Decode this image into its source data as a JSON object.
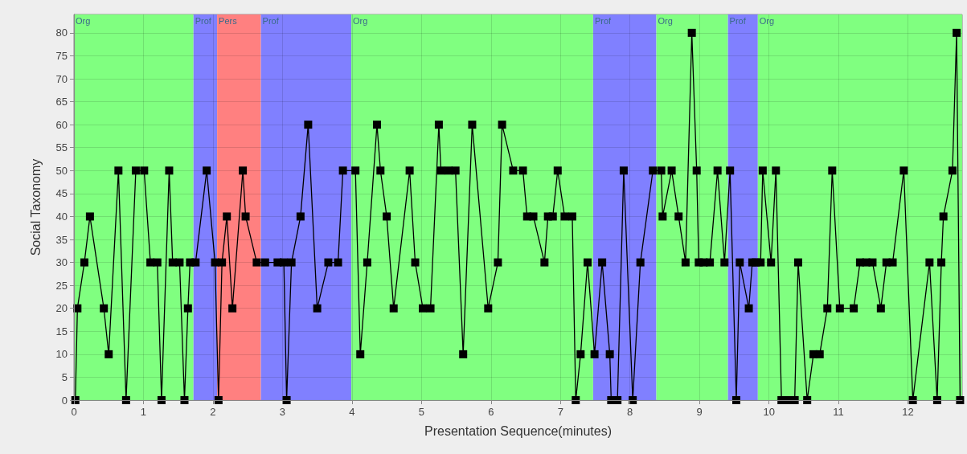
{
  "chart_data": {
    "type": "line",
    "xlabel": "Presentation Sequence(minutes)",
    "ylabel": "Social Taxonomy",
    "series": [
      {
        "color": "#000000",
        "x": [
          0.02,
          0.05,
          0.15,
          0.23,
          0.43,
          0.5,
          0.64,
          0.75,
          0.89,
          1.01,
          1.1,
          1.2,
          1.26,
          1.37,
          1.42,
          1.52,
          1.59,
          1.64,
          1.67,
          1.75,
          1.91,
          2.03,
          2.08,
          2.13,
          2.2,
          2.28,
          2.43,
          2.47,
          2.63,
          2.75,
          2.93,
          3.02,
          3.06,
          3.13,
          3.26,
          3.37,
          3.5,
          3.66,
          3.8,
          3.87,
          4.05,
          4.12,
          4.22,
          4.36,
          4.41,
          4.5,
          4.6,
          4.83,
          4.91,
          5.02,
          5.13,
          5.25,
          5.28,
          5.39,
          5.49,
          5.6,
          5.73,
          5.96,
          6.1,
          6.16,
          6.32,
          6.46,
          6.52,
          6.61,
          6.77,
          6.82,
          6.89,
          6.96,
          7.06,
          7.17,
          7.22,
          7.29,
          7.39,
          7.49,
          7.6,
          7.71,
          7.73,
          7.82,
          7.91,
          8.04,
          8.15,
          8.33,
          8.45,
          8.47,
          8.6,
          8.7,
          8.8,
          8.89,
          8.96,
          8.99,
          9.06,
          9.15,
          9.26,
          9.36,
          9.44,
          9.53,
          9.58,
          9.71,
          9.76,
          9.81,
          9.88,
          9.91,
          10.03,
          10.1,
          10.18,
          10.28,
          10.37,
          10.42,
          10.55,
          10.64,
          10.73,
          10.84,
          10.91,
          11.02,
          11.22,
          11.31,
          11.4,
          11.49,
          11.61,
          11.69,
          11.78,
          11.94,
          12.07,
          12.31,
          12.42,
          12.48,
          12.51,
          12.64,
          12.7,
          12.75
        ],
        "values": [
          0,
          20,
          30,
          40,
          20,
          10,
          50,
          0,
          50,
          50,
          30,
          30,
          0,
          50,
          30,
          30,
          0,
          20,
          30,
          30,
          50,
          30,
          0,
          30,
          40,
          20,
          50,
          40,
          30,
          30,
          30,
          30,
          0,
          30,
          40,
          60,
          20,
          30,
          30,
          50,
          50,
          10,
          30,
          60,
          50,
          40,
          20,
          50,
          30,
          20,
          20,
          60,
          50,
          50,
          50,
          10,
          60,
          20,
          30,
          60,
          50,
          50,
          40,
          40,
          30,
          40,
          40,
          50,
          40,
          40,
          0,
          10,
          30,
          10,
          30,
          10,
          0,
          0,
          50,
          0,
          30,
          50,
          50,
          40,
          50,
          40,
          30,
          80,
          50,
          30,
          30,
          30,
          50,
          30,
          50,
          0,
          30,
          20,
          30,
          30,
          30,
          50,
          30,
          50,
          0,
          0,
          0,
          30,
          0,
          10,
          10,
          20,
          50,
          20,
          20,
          30,
          30,
          30,
          20,
          30,
          30,
          50,
          0,
          30,
          0,
          30,
          40,
          50,
          80,
          0
        ]
      }
    ],
    "xlim": [
      0,
      12.78
    ],
    "ylim": [
      0,
      84
    ],
    "xticks": [
      0,
      1,
      2,
      3,
      4,
      5,
      6,
      7,
      8,
      9,
      10,
      11,
      12
    ],
    "yticks": [
      0,
      5,
      10,
      15,
      20,
      25,
      30,
      35,
      40,
      45,
      50,
      55,
      60,
      65,
      70,
      75,
      80
    ],
    "bands": [
      {
        "axis": "x",
        "from": 0,
        "to": 1.72,
        "label": "Org",
        "color": "#80ff80"
      },
      {
        "axis": "x",
        "from": 1.72,
        "to": 2.06,
        "label": "Prof",
        "color": "#8080ff"
      },
      {
        "axis": "x",
        "from": 2.06,
        "to": 2.69,
        "label": "Pers",
        "color": "#ff8080"
      },
      {
        "axis": "x",
        "from": 2.69,
        "to": 3.99,
        "label": "Prof",
        "color": "#8080ff"
      },
      {
        "axis": "x",
        "from": 3.99,
        "to": 7.47,
        "label": "Org",
        "color": "#80ff80"
      },
      {
        "axis": "x",
        "from": 7.47,
        "to": 8.38,
        "label": "Prof",
        "color": "#8080ff"
      },
      {
        "axis": "x",
        "from": 8.38,
        "to": 9.41,
        "label": "Org",
        "color": "#80ff80"
      },
      {
        "axis": "x",
        "from": 9.41,
        "to": 9.84,
        "label": "Prof",
        "color": "#8080ff"
      },
      {
        "axis": "x",
        "from": 9.84,
        "to": 12.78,
        "label": "Org",
        "color": "#80ff80"
      }
    ],
    "grid": true,
    "marker": "square",
    "line_style": "solid"
  }
}
